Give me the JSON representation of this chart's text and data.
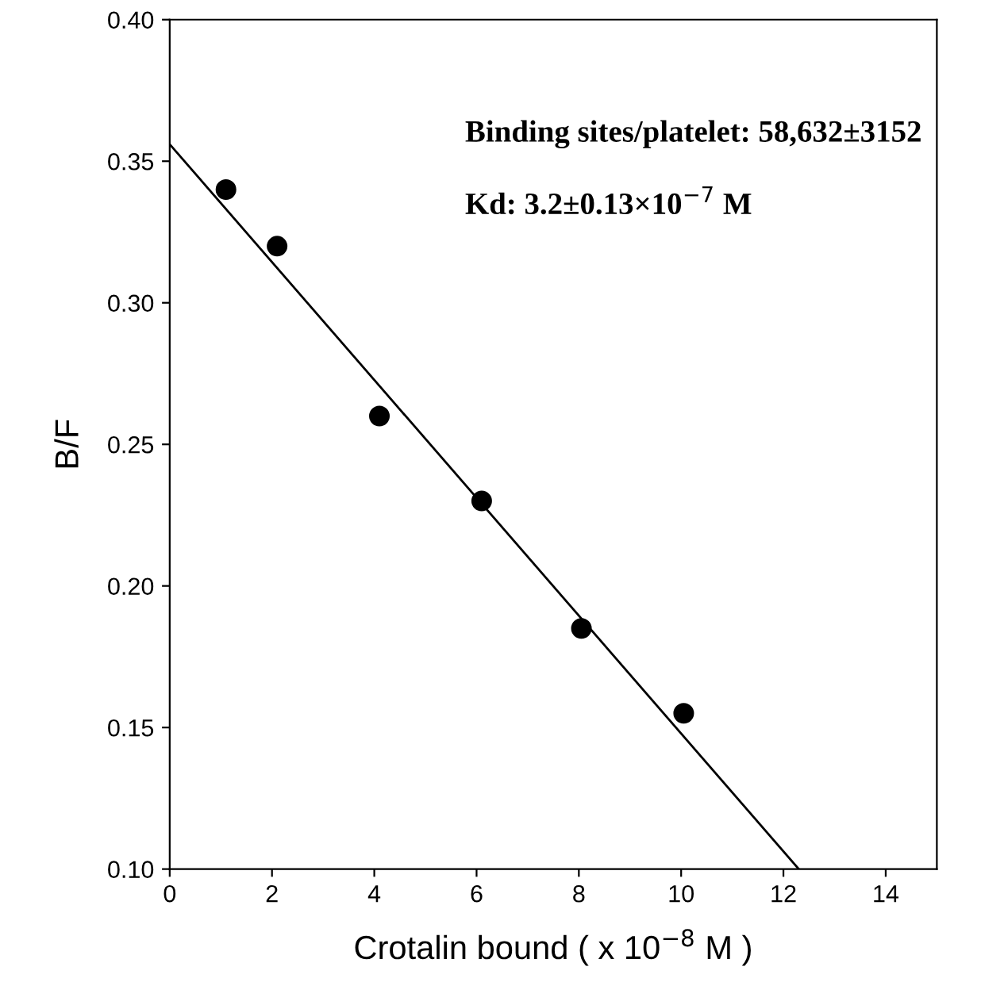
{
  "chart_data": {
    "type": "scatter",
    "xlabel": "Crotalin bound ( x 10$^{−8}$ M )",
    "ylabel": "B/F",
    "series": [
      {
        "color": "#000000",
        "marker": "circle",
        "x": [
          1.1,
          2.1,
          4.1,
          6.1,
          8.05,
          10.05
        ],
        "values": [
          0.34,
          0.32,
          0.26,
          0.23,
          0.185,
          0.155
        ]
      },
      {
        "type": "line",
        "color": "#000000",
        "marker": "none",
        "line_style": "solid",
        "x": [
          0,
          12.3
        ],
        "values": [
          0.356,
          0.1
        ]
      }
    ],
    "xlim": [
      0,
      15
    ],
    "ylim": [
      0.1,
      0.4
    ],
    "xticks": [
      0,
      2,
      4,
      6,
      8,
      10,
      12,
      14
    ],
    "yticks": [
      {
        "value": 0.1,
        "label": "0.10"
      },
      {
        "value": 0.15,
        "label": "0.15"
      },
      {
        "value": 0.2,
        "label": "0.20"
      },
      {
        "value": 0.25,
        "label": "0.25"
      },
      {
        "value": 0.3,
        "label": "0.30"
      },
      {
        "value": 0.35,
        "label": "0.35"
      },
      {
        "value": 0.4,
        "label": "0.40"
      }
    ],
    "annotations": [
      "Binding sites/platelet: 58,632±3152",
      "Kd: 3.2±0.13×10$^{−7}$ M"
    ],
    "grid": false,
    "legend": false
  }
}
